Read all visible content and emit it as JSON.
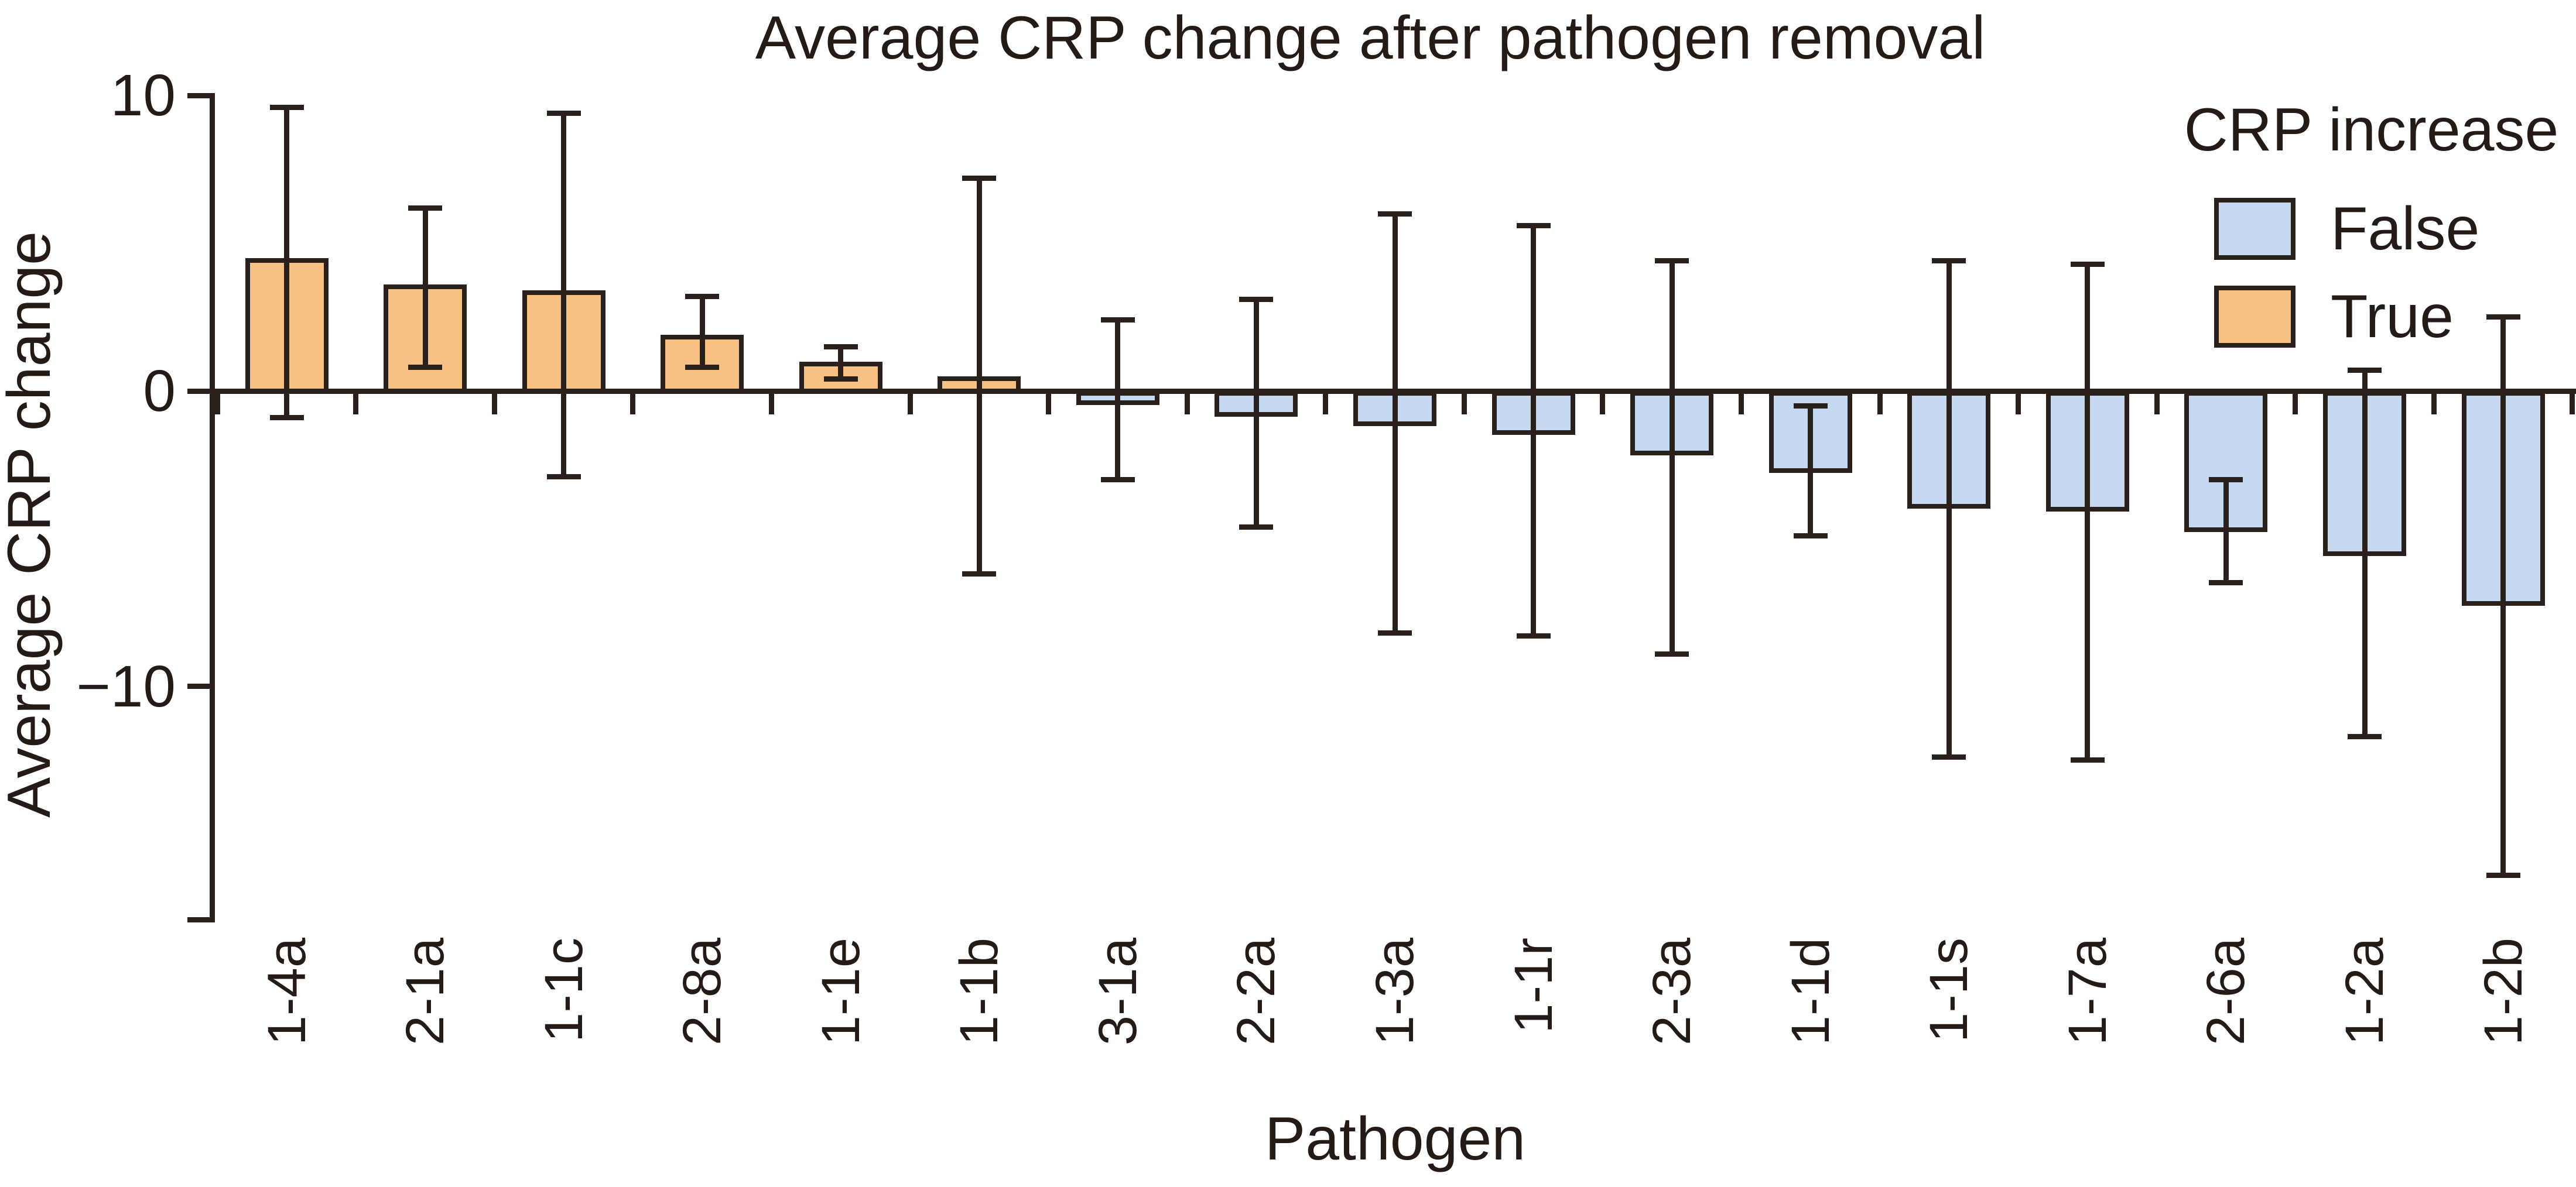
{
  "title": "Average CRP change after pathogen removal",
  "legend": {
    "title": "CRP increase",
    "items": [
      {
        "label": "False",
        "color": "#c5daf0"
      },
      {
        "label": "True",
        "color": "#f7c183"
      }
    ]
  },
  "chart_data": {
    "type": "bar",
    "title": "Average CRP change after pathogen removal",
    "xlabel": "Pathogen",
    "ylabel": "Average CRP change",
    "categories": [
      "1-4a",
      "2-1a",
      "1-1c",
      "2-8a",
      "1-1e",
      "1-1b",
      "3-1a",
      "2-2a",
      "1-3a",
      "1-1r",
      "2-3a",
      "1-1d",
      "1-1s",
      "1-7a",
      "2-6a",
      "1-2a",
      "1-2b"
    ],
    "values": [
      4.5,
      3.6,
      3.4,
      1.9,
      1.0,
      0.5,
      -0.4,
      -0.8,
      -1.1,
      -1.4,
      -2.1,
      -2.7,
      -3.9,
      -4.0,
      -4.7,
      -5.5,
      -7.2
    ],
    "error_high": [
      9.6,
      6.2,
      9.4,
      3.2,
      1.5,
      7.2,
      2.4,
      3.1,
      6.0,
      5.6,
      4.4,
      -0.5,
      4.4,
      4.3,
      -3.0,
      0.7,
      2.5
    ],
    "error_low": [
      -0.9,
      0.8,
      -2.9,
      0.8,
      0.4,
      -6.2,
      -3.0,
      -4.6,
      -8.2,
      -8.3,
      -8.9,
      -4.9,
      -12.4,
      -12.5,
      -6.5,
      -11.7,
      -16.4
    ],
    "crp_increase": [
      true,
      true,
      true,
      true,
      true,
      true,
      false,
      false,
      false,
      false,
      false,
      false,
      false,
      false,
      false,
      false,
      false
    ],
    "yticks": [
      {
        "value": 10,
        "label": "10"
      },
      {
        "value": 0,
        "label": "0"
      },
      {
        "value": -10,
        "label": "−10"
      }
    ],
    "ylim": [
      -17.9,
      10
    ],
    "grid": false,
    "legend_position": "upper right",
    "colors": {
      "true": "#f7c183",
      "false": "#c5daf0",
      "line": "#2a201b"
    }
  }
}
